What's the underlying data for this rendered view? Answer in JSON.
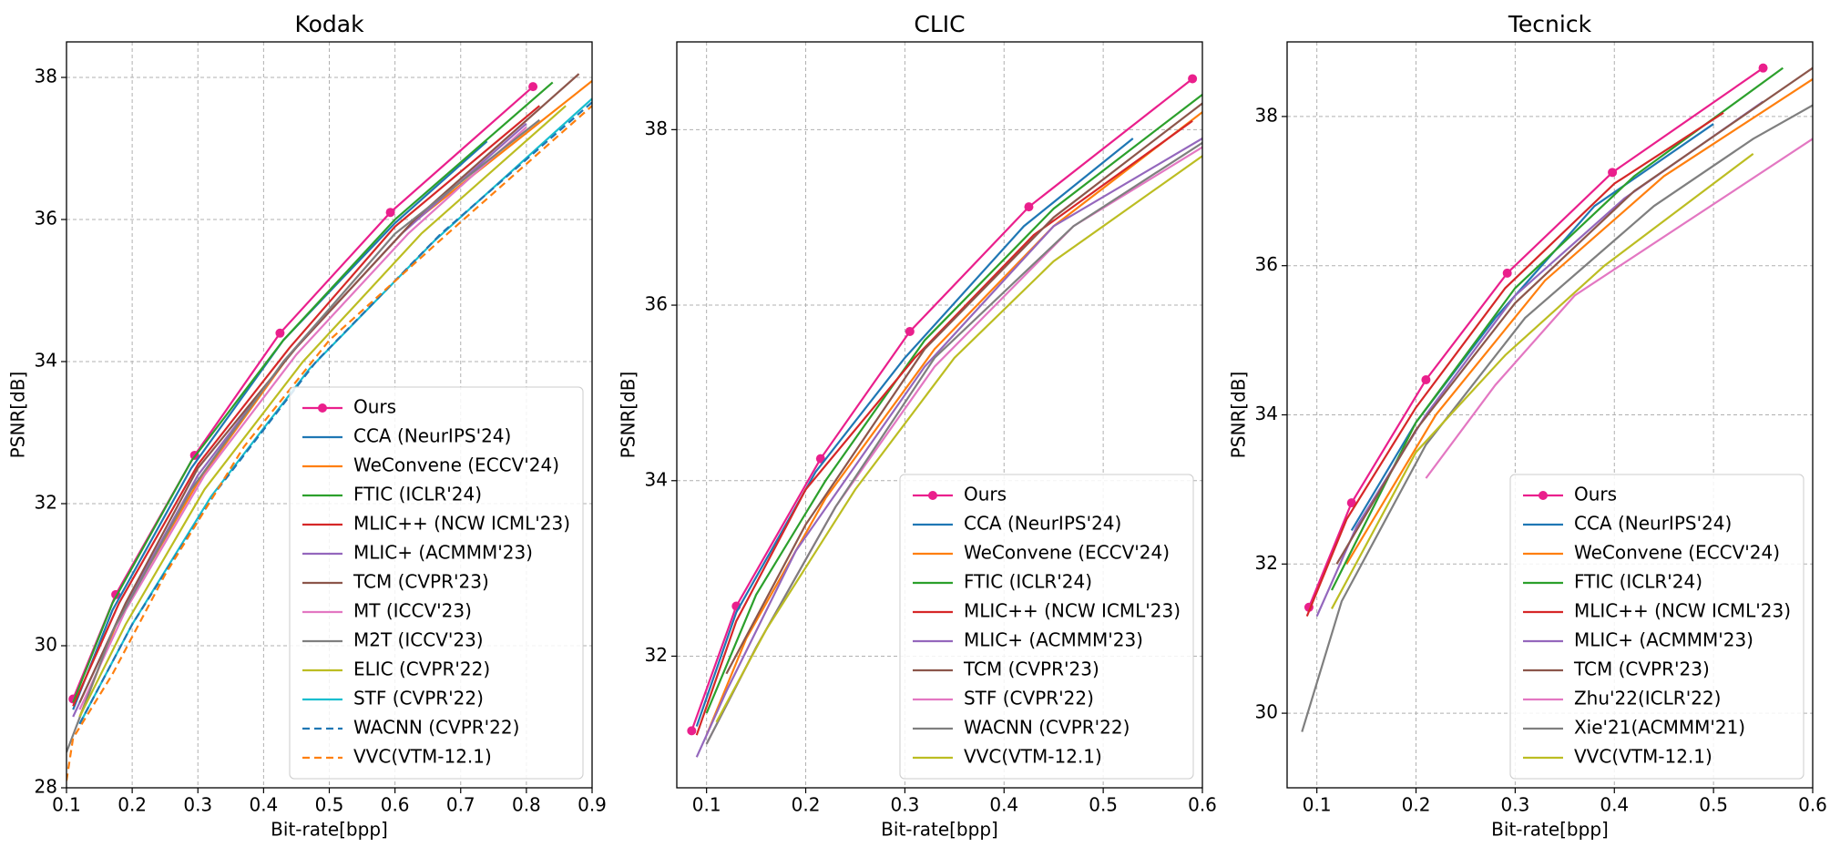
{
  "chart_data": [
    {
      "type": "line",
      "title": "Kodak",
      "x_label": "Bit-rate[bpp]",
      "y_label": "PSNR[dB]",
      "xlim": [
        0.1,
        0.9
      ],
      "ylim": [
        28,
        38.5
      ],
      "xticks": [
        0.1,
        0.2,
        0.3,
        0.4,
        0.5,
        0.6,
        0.7,
        0.8,
        0.9
      ],
      "yticks": [
        28,
        30,
        32,
        34,
        36,
        38
      ],
      "grid": true,
      "legend": "lower right",
      "series": [
        {
          "name": "Ours",
          "color": "#ea1f8c",
          "marker": true,
          "x": [
            0.11,
            0.175,
            0.295,
            0.425,
            0.593,
            0.81
          ],
          "values": [
            29.25,
            30.72,
            32.68,
            34.4,
            36.1,
            37.87
          ]
        },
        {
          "name": "CCA (NeurIPS'24)",
          "color": "#1f77b4",
          "x": [
            0.11,
            0.17,
            0.29,
            0.43,
            0.6,
            0.74
          ],
          "values": [
            29.1,
            30.5,
            32.5,
            34.3,
            35.95,
            37.1
          ]
        },
        {
          "name": "WeConvene (ECCV'24)",
          "color": "#ff7f0e",
          "x": [
            0.12,
            0.18,
            0.3,
            0.44,
            0.62,
            0.9
          ],
          "values": [
            29.0,
            30.4,
            32.3,
            34.1,
            35.9,
            37.95
          ]
        },
        {
          "name": "FTIC (ICLR'24)",
          "color": "#2ca02c",
          "x": [
            0.11,
            0.17,
            0.29,
            0.43,
            0.6,
            0.84
          ],
          "values": [
            29.2,
            30.6,
            32.6,
            34.3,
            36.0,
            37.93
          ]
        },
        {
          "name": "MLIC++ (NCW ICML'23)",
          "color": "#d62728",
          "x": [
            0.11,
            0.18,
            0.3,
            0.44,
            0.6,
            0.82
          ],
          "values": [
            29.15,
            30.6,
            32.55,
            34.2,
            35.9,
            37.6
          ]
        },
        {
          "name": "MLIC+ (ACMMM'23)",
          "color": "#9467bd",
          "x": [
            0.11,
            0.18,
            0.3,
            0.44,
            0.61,
            0.8
          ],
          "values": [
            29.0,
            30.4,
            32.4,
            34.1,
            35.8,
            37.35
          ]
        },
        {
          "name": "TCM (CVPR'23)",
          "color": "#8c564b",
          "x": [
            0.12,
            0.19,
            0.3,
            0.45,
            0.63,
            0.88
          ],
          "values": [
            29.2,
            30.6,
            32.5,
            34.2,
            36.0,
            38.05
          ]
        },
        {
          "name": "MT (ICCV'23)",
          "color": "#e377c2",
          "x": [
            0.12,
            0.19,
            0.31,
            0.45,
            0.62,
            0.8
          ],
          "values": [
            29.1,
            30.5,
            32.4,
            34.1,
            35.8,
            37.3
          ]
        },
        {
          "name": "M2T (ICCV'23)",
          "color": "#7f7f7f",
          "x": [
            0.1,
            0.17,
            0.29,
            0.43,
            0.6,
            0.82
          ],
          "values": [
            28.5,
            30.2,
            32.2,
            34.0,
            35.8,
            37.4
          ]
        },
        {
          "name": "ELIC (CVPR'22)",
          "color": "#bcbd22",
          "x": [
            0.12,
            0.19,
            0.31,
            0.46,
            0.64,
            0.86
          ],
          "values": [
            29.0,
            30.3,
            32.2,
            34.0,
            35.8,
            37.6
          ]
        },
        {
          "name": "STF (CVPR'22)",
          "color": "#17becf",
          "x": [
            0.12,
            0.2,
            0.32,
            0.47,
            0.66,
            0.9
          ],
          "values": [
            28.9,
            30.3,
            32.1,
            33.9,
            35.7,
            37.7
          ]
        },
        {
          "name": "WACNN (CVPR'22)",
          "color": "#1f77b4",
          "dashed": true,
          "x": [
            0.12,
            0.2,
            0.33,
            0.48,
            0.67,
            0.9
          ],
          "values": [
            28.9,
            30.3,
            32.2,
            34.0,
            35.8,
            37.65
          ]
        },
        {
          "name": "VVC(VTM-12.1)",
          "color": "#ff7f0e",
          "dashed": true,
          "x": [
            0.1,
            0.11,
            0.17,
            0.25,
            0.37,
            0.5,
            0.68,
            0.9
          ],
          "values": [
            28.1,
            28.7,
            29.6,
            31.0,
            32.8,
            34.3,
            35.8,
            37.6
          ]
        }
      ]
    },
    {
      "type": "line",
      "title": "CLIC",
      "x_label": "Bit-rate[bpp]",
      "y_label": "PSNR[dB]",
      "xlim": [
        0.07,
        0.6
      ],
      "ylim": [
        30.5,
        39
      ],
      "xticks": [
        0.1,
        0.2,
        0.3,
        0.4,
        0.5,
        0.6
      ],
      "yticks": [
        32,
        34,
        36,
        38
      ],
      "grid": true,
      "legend": "lower right",
      "series": [
        {
          "name": "Ours",
          "color": "#ea1f8c",
          "marker": true,
          "x": [
            0.085,
            0.13,
            0.215,
            0.305,
            0.425,
            0.59
          ],
          "values": [
            31.15,
            32.57,
            34.25,
            35.7,
            37.12,
            38.58
          ]
        },
        {
          "name": "CCA (NeurIPS'24)",
          "color": "#1f77b4",
          "x": [
            0.09,
            0.13,
            0.21,
            0.3,
            0.42,
            0.53
          ],
          "values": [
            31.2,
            32.5,
            34.1,
            35.4,
            36.9,
            37.9
          ]
        },
        {
          "name": "WeConvene (ECCV'24)",
          "color": "#ff7f0e",
          "x": [
            0.1,
            0.14,
            0.22,
            0.33,
            0.45,
            0.6
          ],
          "values": [
            31.1,
            32.2,
            33.8,
            35.5,
            36.9,
            38.2
          ]
        },
        {
          "name": "FTIC (ICLR'24)",
          "color": "#2ca02c",
          "x": [
            0.1,
            0.15,
            0.22,
            0.32,
            0.45,
            0.6
          ],
          "values": [
            31.35,
            32.7,
            34.0,
            35.6,
            37.1,
            38.4
          ]
        },
        {
          "name": "MLIC++ (NCW ICML'23)",
          "color": "#d62728",
          "x": [
            0.09,
            0.13,
            0.2,
            0.31,
            0.43,
            0.59
          ],
          "values": [
            31.1,
            32.4,
            33.9,
            35.4,
            36.8,
            38.1
          ]
        },
        {
          "name": "MLIC+ (ACMMM'23)",
          "color": "#9467bd",
          "x": [
            0.09,
            0.12,
            0.19,
            0.32,
            0.45,
            0.6
          ],
          "values": [
            30.85,
            31.6,
            33.2,
            35.3,
            36.9,
            37.9
          ]
        },
        {
          "name": "TCM (CVPR'23)",
          "color": "#8c564b",
          "x": [
            0.12,
            0.2,
            0.32,
            0.45,
            0.6
          ],
          "values": [
            31.8,
            33.5,
            35.5,
            37.0,
            38.3
          ]
        },
        {
          "name": "STF (CVPR'22)",
          "color": "#e377c2",
          "x": [
            0.1,
            0.15,
            0.23,
            0.33,
            0.47,
            0.6
          ],
          "values": [
            31.0,
            32.1,
            33.7,
            35.3,
            36.9,
            37.8
          ]
        },
        {
          "name": "WACNN (CVPR'22)",
          "color": "#7f7f7f",
          "x": [
            0.1,
            0.15,
            0.23,
            0.33,
            0.47,
            0.6
          ],
          "values": [
            31.0,
            32.1,
            33.7,
            35.4,
            36.9,
            37.85
          ]
        },
        {
          "name": "VVC(VTM-12.1)",
          "color": "#bcbd22",
          "x": [
            0.11,
            0.16,
            0.25,
            0.35,
            0.45,
            0.6
          ],
          "values": [
            31.25,
            32.3,
            33.9,
            35.4,
            36.5,
            37.7
          ]
        }
      ]
    },
    {
      "type": "line",
      "title": "Tecnick",
      "x_label": "Bit-rate[bpp]",
      "y_label": "PSNR[dB]",
      "xlim": [
        0.07,
        0.6
      ],
      "ylim": [
        29,
        39
      ],
      "xticks": [
        0.1,
        0.2,
        0.3,
        0.4,
        0.5,
        0.6
      ],
      "yticks": [
        30,
        32,
        34,
        36,
        38
      ],
      "grid": true,
      "legend": "lower right",
      "series": [
        {
          "name": "Ours",
          "color": "#ea1f8c",
          "marker": true,
          "x": [
            0.092,
            0.135,
            0.21,
            0.292,
            0.398,
            0.55
          ],
          "values": [
            31.42,
            32.82,
            34.47,
            35.9,
            37.25,
            38.65
          ]
        },
        {
          "name": "CCA (NeurIPS'24)",
          "color": "#1f77b4",
          "x": [
            0.135,
            0.2,
            0.28,
            0.38,
            0.5
          ],
          "values": [
            32.45,
            33.9,
            35.3,
            36.8,
            37.9
          ]
        },
        {
          "name": "WeConvene (ECCV'24)",
          "color": "#ff7f0e",
          "x": [
            0.13,
            0.22,
            0.33,
            0.45,
            0.6
          ],
          "values": [
            32.0,
            34.0,
            35.8,
            37.2,
            38.5
          ]
        },
        {
          "name": "FTIC (ICLR'24)",
          "color": "#2ca02c",
          "x": [
            0.115,
            0.2,
            0.3,
            0.42,
            0.57
          ],
          "values": [
            31.65,
            33.9,
            35.7,
            37.2,
            38.65
          ]
        },
        {
          "name": "MLIC++ (NCW ICML'23)",
          "color": "#d62728",
          "x": [
            0.09,
            0.13,
            0.2,
            0.29,
            0.4,
            0.51
          ],
          "values": [
            31.3,
            32.6,
            34.1,
            35.7,
            37.1,
            38.05
          ]
        },
        {
          "name": "MLIC+ (ACMMM'23)",
          "color": "#9467bd",
          "x": [
            0.1,
            0.14,
            0.21,
            0.3,
            0.41,
            0.55
          ],
          "values": [
            31.3,
            32.5,
            34.0,
            35.6,
            36.9,
            38.2
          ]
        },
        {
          "name": "TCM (CVPR'23)",
          "color": "#8c564b",
          "x": [
            0.12,
            0.2,
            0.3,
            0.42,
            0.6
          ],
          "values": [
            32.0,
            33.8,
            35.5,
            37.0,
            38.65
          ]
        },
        {
          "name": "Zhu'22(ICLR'22)",
          "color": "#e377c2",
          "x": [
            0.21,
            0.28,
            0.36,
            0.6
          ],
          "values": [
            33.15,
            34.4,
            35.6,
            37.7
          ]
        },
        {
          "name": "Xie'21(ACMMM'21)",
          "color": "#7f7f7f",
          "x": [
            0.085,
            0.125,
            0.21,
            0.31,
            0.44,
            0.54,
            0.6
          ],
          "values": [
            29.75,
            31.5,
            33.6,
            35.3,
            36.8,
            37.7,
            38.15
          ]
        },
        {
          "name": "VVC(VTM-12.1)",
          "color": "#bcbd22",
          "x": [
            0.115,
            0.2,
            0.29,
            0.39,
            0.54
          ],
          "values": [
            31.4,
            33.5,
            34.8,
            36.0,
            37.5
          ]
        }
      ]
    }
  ]
}
